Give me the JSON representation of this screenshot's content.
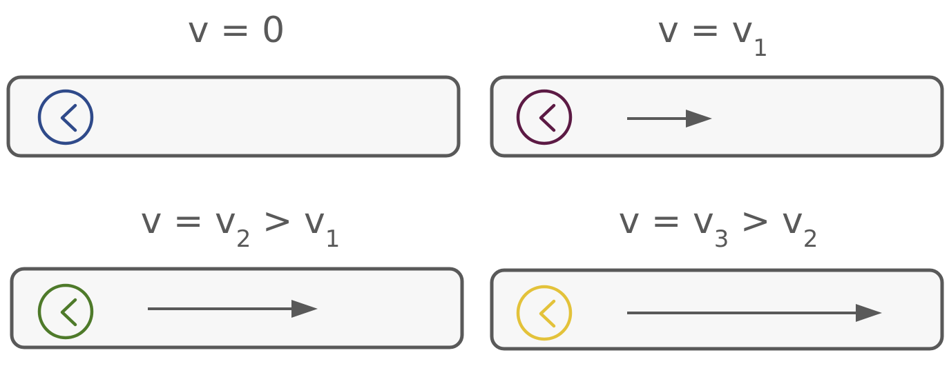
{
  "panels": [
    {
      "id": "rest",
      "label": {
        "main": "v = 0",
        "sub1": "",
        "mid": "",
        "sub2": ""
      },
      "velocity": 0,
      "clock_color": "#2f4a8a"
    },
    {
      "id": "v1",
      "label": {
        "main": "v = v",
        "sub1": "1",
        "mid": "",
        "sub2": ""
      },
      "velocity": 1,
      "clock_color": "#5c1a44"
    },
    {
      "id": "v2",
      "label": {
        "main": "v = v",
        "sub1": "2",
        "mid": " > v",
        "sub2": "1"
      },
      "velocity": 2,
      "clock_color": "#4e7a2a"
    },
    {
      "id": "v3",
      "label": {
        "main": "v = v",
        "sub1": "3",
        "mid": " > v",
        "sub2": "2"
      },
      "velocity": 3,
      "clock_color": "#e3c23a"
    }
  ],
  "colors": {
    "box_stroke": "#595959",
    "box_fill": "#f7f7f7",
    "arrow": "#595959",
    "text": "#595959"
  }
}
